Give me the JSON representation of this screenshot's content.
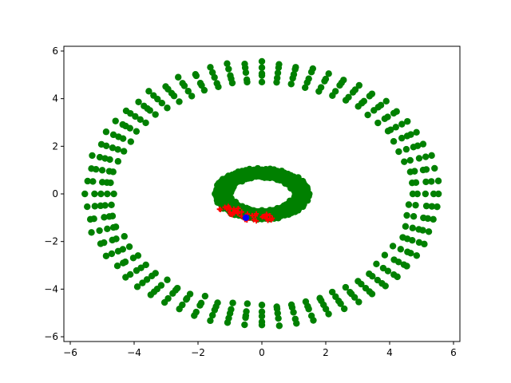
{
  "chart_data": {
    "type": "scatter",
    "title": "",
    "xlabel": "",
    "ylabel": "",
    "xlim": [
      -6.2,
      6.2
    ],
    "ylim": [
      -6.2,
      6.2
    ],
    "x_ticks": [
      -6,
      -4,
      -2,
      0,
      2,
      4,
      6
    ],
    "y_ticks": [
      -6,
      -4,
      -2,
      0,
      2,
      4,
      6
    ],
    "x_tick_labels": [
      "−6",
      "−4",
      "−2",
      "0",
      "2",
      "4",
      "6"
    ],
    "y_tick_labels": [
      "−6",
      "−4",
      "−2",
      "0",
      "2",
      "4",
      "6"
    ],
    "grid": false,
    "legend": "none",
    "series": [
      {
        "kind": "outer-ring",
        "color": "#008000",
        "marker": "circle",
        "spokes": 64,
        "radii": [
          4.7,
          4.9,
          5.1,
          5.3,
          5.5
        ],
        "offset_deg": 0,
        "center": [
          0,
          0
        ],
        "jitter": 0.08
      },
      {
        "kind": "inner-ring",
        "color": "#008000",
        "marker": "circle",
        "spokes": 72,
        "radii": [
          1.0,
          1.15,
          1.3,
          1.45
        ],
        "aspect_y": 0.72,
        "center": [
          0,
          0
        ],
        "jitter": 0.05
      },
      {
        "kind": "highlight-arc",
        "color": "#ff0000",
        "marker": "plus",
        "count": 40,
        "center": [
          0,
          0
        ],
        "arc_start_deg": 210,
        "arc_end_deg": 285,
        "radius_range": [
          1.15,
          1.55
        ],
        "aspect_y": 0.75,
        "jitter": 0.06
      },
      {
        "kind": "single-point",
        "color": "#0000ff",
        "marker": "circle",
        "x": -0.5,
        "y": -1.0
      }
    ]
  }
}
